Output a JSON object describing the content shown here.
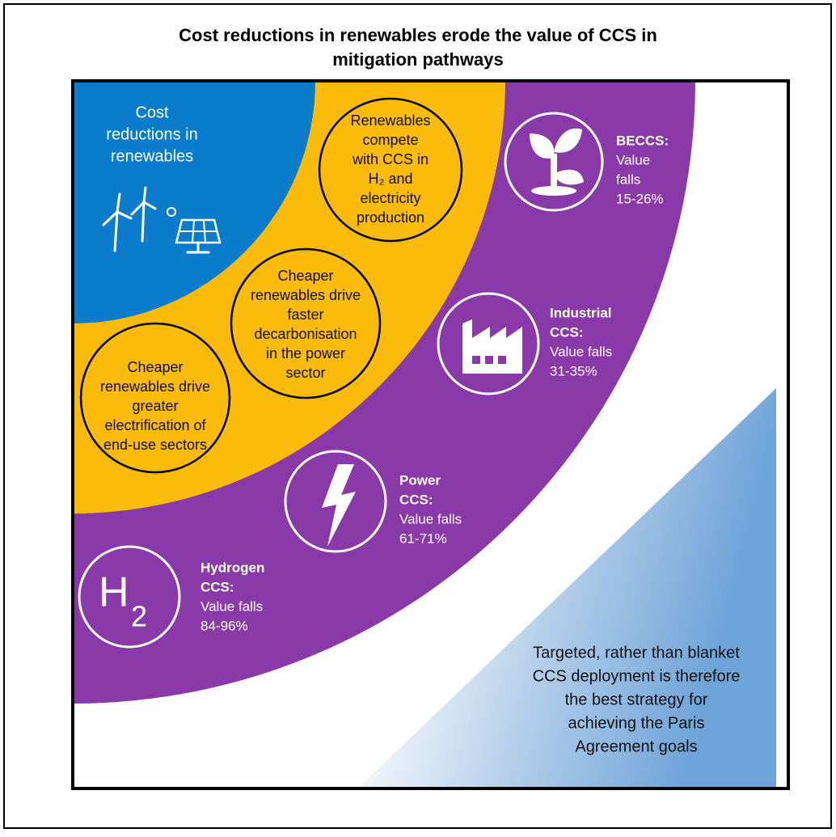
{
  "title": [
    "Cost reductions in renewables erode the value of CCS in",
    "mitigation pathways"
  ],
  "center_label": [
    "Cost",
    "reductions in",
    "renewables"
  ],
  "drivers": [
    {
      "lines": [
        "Renewables",
        "compete",
        "with CCS in",
        "H₂ and",
        "electricity",
        "production"
      ]
    },
    {
      "lines": [
        "Cheaper",
        "renewables drive",
        "faster",
        "decarbonisation",
        "in the power",
        "sector"
      ]
    },
    {
      "lines": [
        "Cheaper",
        "renewables drive",
        "greater",
        "electrification of",
        "end-use sectors"
      ]
    }
  ],
  "sectors": [
    {
      "name_lines": [
        "BECCS:"
      ],
      "text_lines": [
        "Value",
        "falls",
        "15-26%"
      ]
    },
    {
      "name_lines": [
        "Industrial",
        "CCS:"
      ],
      "text_lines": [
        "Value falls",
        "31-35%"
      ]
    },
    {
      "name_lines": [
        "Power",
        "CCS:"
      ],
      "text_lines": [
        "Value falls",
        "61-71%"
      ]
    },
    {
      "name_lines": [
        "Hydrogen",
        "CCS:"
      ],
      "text_lines": [
        "Value falls",
        "84-96%"
      ]
    }
  ],
  "hydrogen_icon": [
    "H",
    "2"
  ],
  "conclusion": [
    "Targeted, rather than blanket",
    "CCS deployment is therefore",
    "the best strategy for",
    "achieving the Paris",
    "Agreement goals"
  ]
}
